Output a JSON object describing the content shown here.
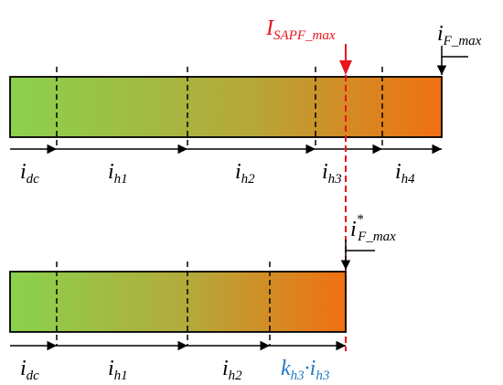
{
  "colors": {
    "bar_gradient_start": "#8ad24e",
    "bar_gradient_mid": "#b5a83a",
    "bar_gradient_end": "#f07010",
    "red_marker": "#e8141c",
    "blue_label": "#1f77c4",
    "outline": "#000000"
  },
  "top_bar": {
    "segments": [
      {
        "main": "i",
        "sub": "dc"
      },
      {
        "main": "i",
        "sub": "h1"
      },
      {
        "main": "i",
        "sub": "h2"
      },
      {
        "main": "i",
        "sub": "h3"
      },
      {
        "main": "i",
        "sub": "h4"
      }
    ],
    "red_marker_label": {
      "main": "I",
      "sub": "SAPF_max"
    },
    "end_marker_label": {
      "main": "i",
      "sub": "F_max"
    }
  },
  "bottom_bar": {
    "segments": [
      {
        "main": "i",
        "sub": "dc"
      },
      {
        "main": "i",
        "sub": "h1"
      },
      {
        "main": "i",
        "sub": "h2"
      }
    ],
    "scaled_segment": {
      "coef": "k",
      "coef_sub": "h3",
      "dot": "·",
      "main": "i",
      "sub": "h3"
    },
    "end_marker_label": {
      "main": "i",
      "sup": "*",
      "sub": "F_max"
    }
  }
}
